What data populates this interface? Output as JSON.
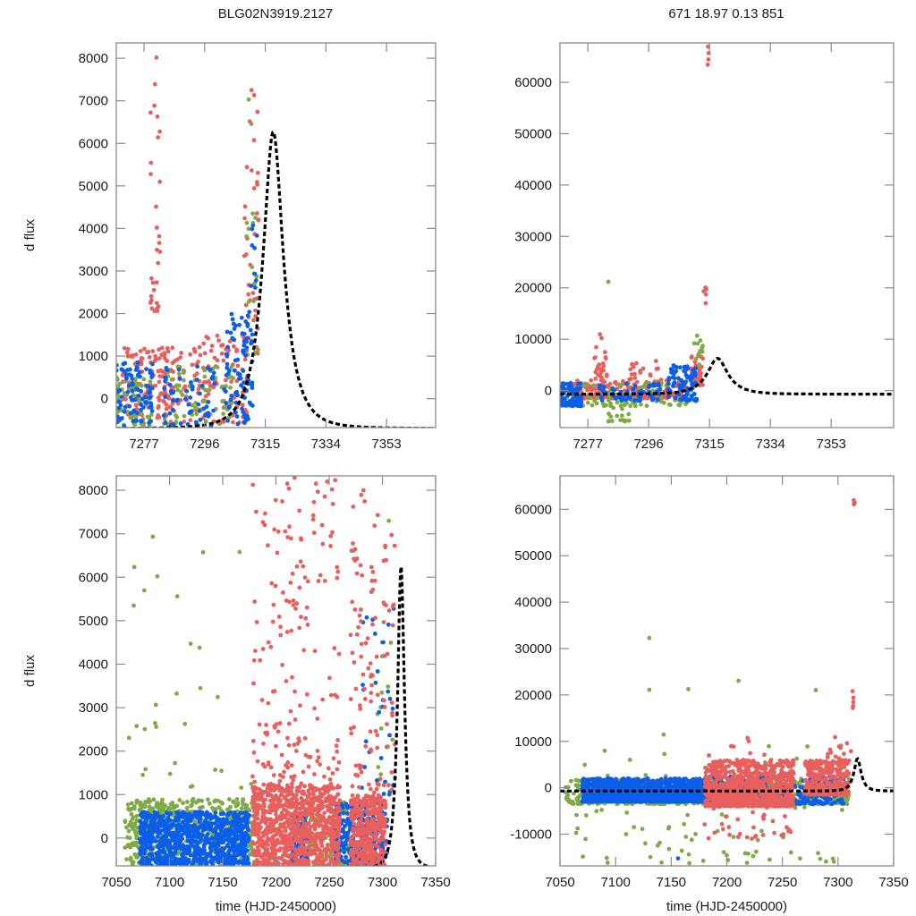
{
  "figure": {
    "title_left": "BLG02N3919.2127",
    "title_right": "671  18.97  0.13  851",
    "colors": {
      "series_1": "#e8605e",
      "series_2": "#7fab46",
      "series_3": "#0b5ee8",
      "model": "#000000"
    }
  },
  "chart_data": [
    {
      "id": "top-left",
      "type": "scatter",
      "title": "BLG02N3919.2127",
      "xlabel": "",
      "ylabel": "d flux",
      "xlim": [
        7268.3,
        7368.4
      ],
      "ylim": [
        -680,
        8360
      ],
      "xticks": [
        7277,
        7296,
        7315,
        7334,
        7353
      ],
      "xtick_labels": [
        "7277",
        "7296",
        "7315",
        "7334",
        "7353"
      ],
      "yticks": [
        0,
        1000,
        2000,
        3000,
        4000,
        5000,
        6000,
        7000,
        8000
      ],
      "ytick_labels": [
        "0",
        "1000",
        "2000",
        "3000",
        "4000",
        "5000",
        "6000",
        "7000",
        "8000"
      ],
      "grid": false,
      "model": {
        "name": "microlensing model",
        "t0": 7317.5,
        "peak": 6270,
        "tE": 7.2,
        "base": -700
      },
      "series": [
        {
          "name": "red",
          "color": "#e8605e",
          "segments": [
            [
              7270,
              7290,
              -600,
              1200,
              160
            ],
            [
              7279,
              7282,
              2000,
              8200,
              30
            ],
            [
              7290,
              7310,
              -600,
              1500,
              110
            ],
            [
              7308,
              7313,
              1000,
              7600,
              40
            ]
          ]
        },
        {
          "name": "green",
          "color": "#7fab46",
          "segments": [
            [
              7268,
              7280,
              -650,
              600,
              60
            ],
            [
              7283,
              7305,
              -650,
              800,
              70
            ],
            [
              7309,
              7313,
              1000,
              7300,
              18
            ]
          ]
        },
        {
          "name": "blue",
          "color": "#0b5ee8",
          "segments": [
            [
              7268,
              7280,
              -650,
              900,
              90
            ],
            [
              7283,
              7300,
              -650,
              800,
              60
            ],
            [
              7302,
              7311,
              -600,
              2000,
              90
            ],
            [
              7310,
              7313,
              2000,
              4300,
              10
            ]
          ]
        }
      ]
    },
    {
      "id": "top-right",
      "type": "scatter",
      "title": "671  18.97  0.13  851",
      "xlabel": "",
      "ylabel": "",
      "xlim": [
        7268.3,
        7372.5
      ],
      "ylim": [
        -7200,
        67650
      ],
      "xticks": [
        7277,
        7296,
        7315,
        7334,
        7353
      ],
      "xtick_labels": [
        "7277",
        "7296",
        "7315",
        "7334",
        "7353"
      ],
      "yticks": [
        0,
        10000,
        20000,
        30000,
        40000,
        50000,
        60000
      ],
      "ytick_labels": [
        "0",
        "10000",
        "20000",
        "30000",
        "40000",
        "50000",
        "60000"
      ],
      "grid": false,
      "model": {
        "name": "microlensing model",
        "t0": 7317.5,
        "peak": 6270,
        "tE": 7.2,
        "base": -700
      },
      "series": [
        {
          "name": "red",
          "color": "#e8605e",
          "segments": [
            [
              7272,
              7308,
              -1500,
              2000,
              200
            ],
            [
              7279,
              7283,
              2000,
              11000,
              25
            ],
            [
              7290,
              7300,
              2000,
              6000,
              20
            ],
            [
              7309,
              7313,
              1000,
              8000,
              40
            ],
            [
              7313,
              7314,
              17000,
              21000,
              5
            ],
            [
              7314,
              7315,
              61000,
              67000,
              4
            ]
          ]
        },
        {
          "name": "green",
          "color": "#7fab46",
          "segments": [
            [
              7268,
              7310,
              -3000,
              1500,
              90
            ],
            [
              7283,
              7290,
              -6000,
              -1000,
              25
            ],
            [
              7283,
              7284,
              21000,
              21500,
              1
            ],
            [
              7310,
              7313,
              5000,
              11000,
              12
            ]
          ]
        },
        {
          "name": "blue",
          "color": "#0b5ee8",
          "segments": [
            [
              7268,
              7275,
              -3000,
              1500,
              90
            ],
            [
              7280,
              7300,
              -2000,
              1500,
              60
            ],
            [
              7302,
              7311,
              -2000,
              5000,
              90
            ]
          ]
        }
      ]
    },
    {
      "id": "bottom-left",
      "type": "scatter",
      "title": "",
      "xlabel": "time (HJD-2450000)",
      "ylabel": "d flux",
      "xlim": [
        7050,
        7350
      ],
      "ylim": [
        -640,
        8330
      ],
      "xticks": [
        7050,
        7100,
        7150,
        7200,
        7250,
        7300,
        7350
      ],
      "xtick_labels": [
        "7050",
        "7100",
        "7150",
        "7200",
        "7250",
        "7300",
        "7350"
      ],
      "yticks": [
        0,
        1000,
        2000,
        3000,
        4000,
        5000,
        6000,
        7000,
        8000
      ],
      "ytick_labels": [
        "0",
        "1000",
        "2000",
        "3000",
        "4000",
        "5000",
        "6000",
        "7000",
        "8000"
      ],
      "grid": false,
      "model": {
        "name": "microlensing model",
        "t0": 7317.5,
        "peak": 6270,
        "tE": 7.2,
        "base": -700
      },
      "series": [
        {
          "name": "green",
          "color": "#7fab46",
          "segments": [
            [
              7058,
              7180,
              -640,
              900,
              500
            ],
            [
              7060,
              7180,
              1000,
              7500,
              30
            ],
            [
              7225,
              7270,
              -640,
              900,
              120
            ],
            [
              7295,
              7310,
              1000,
              7300,
              15
            ]
          ]
        },
        {
          "name": "blue",
          "color": "#0b5ee8",
          "segments": [
            [
              7072,
              7175,
              -640,
              600,
              900
            ],
            [
              7215,
              7230,
              -640,
              600,
              120
            ],
            [
              7255,
              7305,
              -640,
              800,
              250
            ],
            [
              7280,
              7312,
              1000,
              5500,
              30
            ]
          ]
        },
        {
          "name": "red",
          "color": "#e8605e",
          "segments": [
            [
              7178,
              7260,
              -640,
              1200,
              900
            ],
            [
              7178,
              7260,
              1200,
              8300,
              180
            ],
            [
              7270,
              7303,
              -640,
              1000,
              350
            ],
            [
              7270,
              7312,
              1000,
              8200,
              110
            ]
          ]
        }
      ]
    },
    {
      "id": "bottom-right",
      "type": "scatter",
      "title": "",
      "xlabel": "time (HJD-2450000)",
      "ylabel": "",
      "xlim": [
        7050,
        7350
      ],
      "ylim": [
        -16840,
        67200
      ],
      "xticks": [
        7050,
        7100,
        7150,
        7200,
        7250,
        7300,
        7350
      ],
      "xtick_labels": [
        "7050",
        "7100",
        "7150",
        "7200",
        "7250",
        "7300",
        "7350"
      ],
      "yticks": [
        -10000,
        0,
        10000,
        20000,
        30000,
        40000,
        50000,
        60000
      ],
      "ytick_labels": [
        "-10000",
        "0",
        "10000",
        "20000",
        "30000",
        "40000",
        "50000",
        "60000"
      ],
      "grid": false,
      "model": {
        "name": "microlensing model",
        "t0": 7317.5,
        "peak": 6270,
        "tE": 7.2,
        "base": -700
      },
      "series": [
        {
          "name": "green",
          "color": "#7fab46",
          "segments": [
            [
              7055,
              7310,
              -3500,
              2000,
              600
            ],
            [
              7060,
              7310,
              -16500,
              12000,
              90
            ],
            [
              7130,
              7131,
              32000,
              32500,
              1
            ],
            [
              7130,
              7131,
              21000,
              21500,
              1
            ],
            [
              7165,
              7166,
              21000,
              21500,
              1
            ],
            [
              7210,
              7211,
              23000,
              23500,
              1
            ],
            [
              7280,
              7281,
              21000,
              21500,
              1
            ]
          ]
        },
        {
          "name": "blue",
          "color": "#0b5ee8",
          "segments": [
            [
              7070,
              7180,
              -3000,
              2000,
              1200
            ],
            [
              7180,
              7305,
              -3500,
              2500,
              400
            ],
            [
              7155,
              7160,
              -15500,
              -15000,
              1
            ]
          ]
        },
        {
          "name": "red",
          "color": "#e8605e",
          "segments": [
            [
              7180,
              7260,
              -4000,
              6000,
              900
            ],
            [
              7180,
              7260,
              -11000,
              12000,
              60
            ],
            [
              7270,
              7310,
              -1500,
              6000,
              300
            ],
            [
              7290,
              7312,
              5000,
              11000,
              20
            ],
            [
              7313,
              7314,
              17000,
              21000,
              5
            ],
            [
              7314,
              7315,
              61000,
              67000,
              4
            ]
          ]
        }
      ]
    }
  ]
}
